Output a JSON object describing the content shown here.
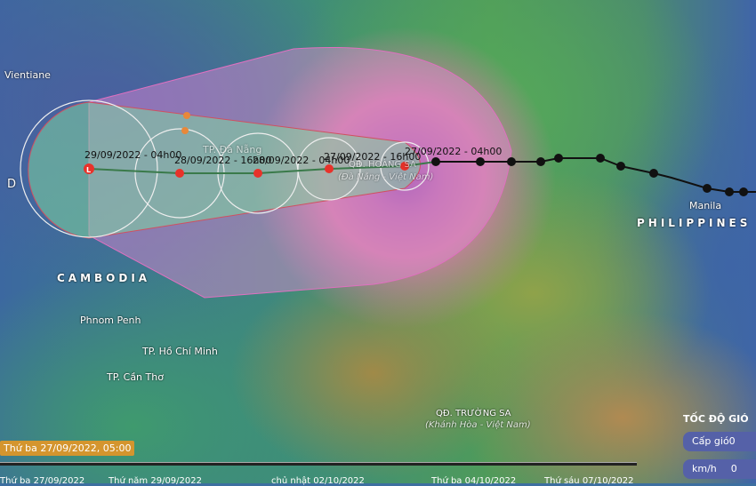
{
  "places": {
    "vientiane": "Vientiane",
    "cambodia": "CAMBODIA",
    "phnom_penh": "Phnom Penh",
    "hcm": "TP. Hồ Chí Minh",
    "can_tho": "TP. Cần Thơ",
    "da_nang": "TP. Đà Nẵng",
    "hoang_sa": "QĐ. HOÀNG SA",
    "hoang_sa_sub": "(Đà Nẵng - Việt Nam)",
    "truong_sa": "QĐ. TRƯỜNG SA",
    "truong_sa_sub": "(Khánh Hòa - Việt Nam)",
    "manila": "Manila",
    "philippines": "PHILIPPINES",
    "left_edge": "D"
  },
  "forecast": [
    {
      "time": "27/09/2022 - 04h00",
      "symbol": "storm"
    },
    {
      "time": "27/09/2022 - 16h00",
      "symbol": "storm"
    },
    {
      "time": "28/09/2022 - 04h00",
      "symbol": "storm"
    },
    {
      "time": "28/09/2022 - 16h00",
      "symbol": "storm"
    },
    {
      "time": "29/09/2022 - 04h00",
      "symbol": "L"
    }
  ],
  "current_time": "Thứ ba 27/09/2022, 05:00",
  "timeline_labels": [
    "Thứ ba 27/09/2022",
    "Thứ năm 29/09/2022",
    "chủ nhật 02/10/2022",
    "Thứ ba 04/10/2022",
    "Thứ sáu 07/10/2022"
  ],
  "legend": {
    "title": "TỐC ĐỘ GIÓ",
    "level_label": "Cấp gió",
    "level_value": "0",
    "unit": "km/h",
    "speed_value": "0"
  },
  "colors": {
    "storm_icon": "#e8322a",
    "track_past": "#111111",
    "cone_outer": "#e68ad8",
    "cone_inner": "#7fd6a0",
    "badge": "#d4952e"
  }
}
